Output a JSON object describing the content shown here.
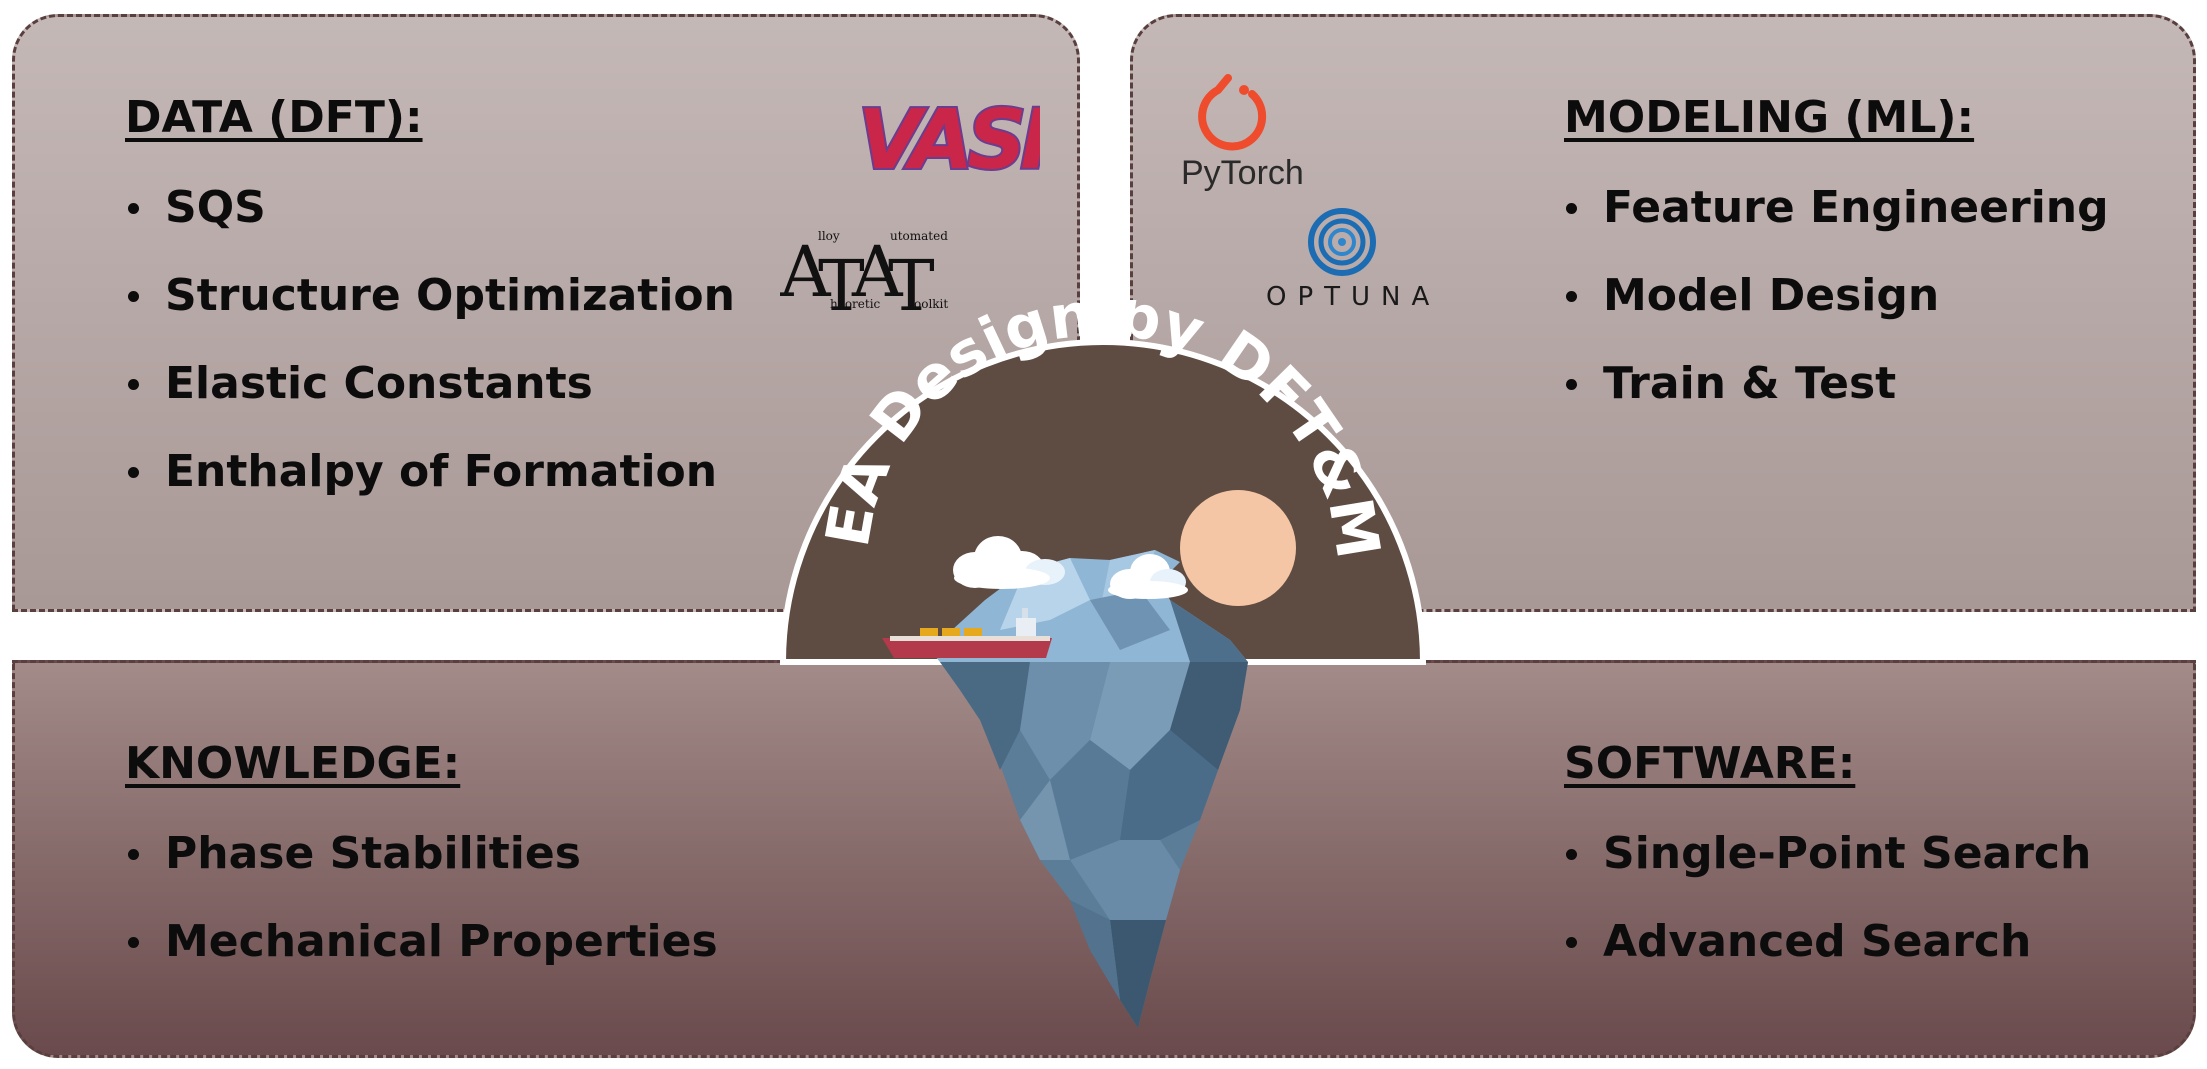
{
  "title": "HEA Design by DFT&ML",
  "panels": {
    "data": {
      "heading": "DATA (DFT):",
      "items": [
        "SQS",
        "Structure Optimization",
        "Elastic Constants",
        "Enthalpy of Formation"
      ]
    },
    "modeling": {
      "heading": "MODELING (ML):",
      "items": [
        "Feature Engineering",
        "Model Design",
        "Train & Test"
      ]
    },
    "knowledge": {
      "heading": "KNOWLEDGE:",
      "items": [
        "Phase Stabilities",
        "Mechanical Properties"
      ]
    },
    "software": {
      "heading": "SOFTWARE:",
      "items": [
        "Single-Point Search",
        "Advanced Search"
      ]
    }
  },
  "logos": {
    "vasp": "VASP",
    "atat": {
      "letters": [
        "A",
        "T",
        "A",
        "T"
      ],
      "words": [
        "lloy",
        "utomated",
        "heoretic",
        "oolkit"
      ]
    },
    "pytorch": "PyTorch",
    "optuna": "OPTUNA"
  },
  "colors": {
    "panel_top": "#c4b8b6",
    "panel_bottom": "#6a4a4c",
    "border": "#5a3f3f",
    "dome": "#5e4c43",
    "sun": "#f5c6a5",
    "iceberg": "#5b7d98",
    "pytorch": "#ee4c2c",
    "optuna": "#1b6cb3",
    "vasp_fill": "#c9264a",
    "vasp_outline": "#6a3d8f"
  }
}
